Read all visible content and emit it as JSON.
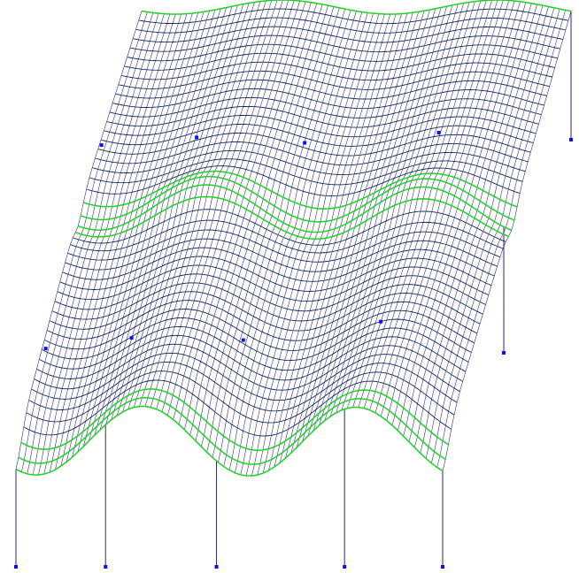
{
  "scene": {
    "type": "3d-wireframe-mesh",
    "rows": 46,
    "cols": 76,
    "colors": {
      "background": "#ffffff",
      "mesh_line": "#1a1a8a",
      "mesh_line_alt": "#2222aa",
      "highlight": "#22dd22",
      "support_line": "#2a2a6a",
      "support_marker": "#1010ee"
    },
    "upper_support_count": 5,
    "lower_support_count": 5,
    "middle_marker_count": 5,
    "right_support_count": 1
  }
}
